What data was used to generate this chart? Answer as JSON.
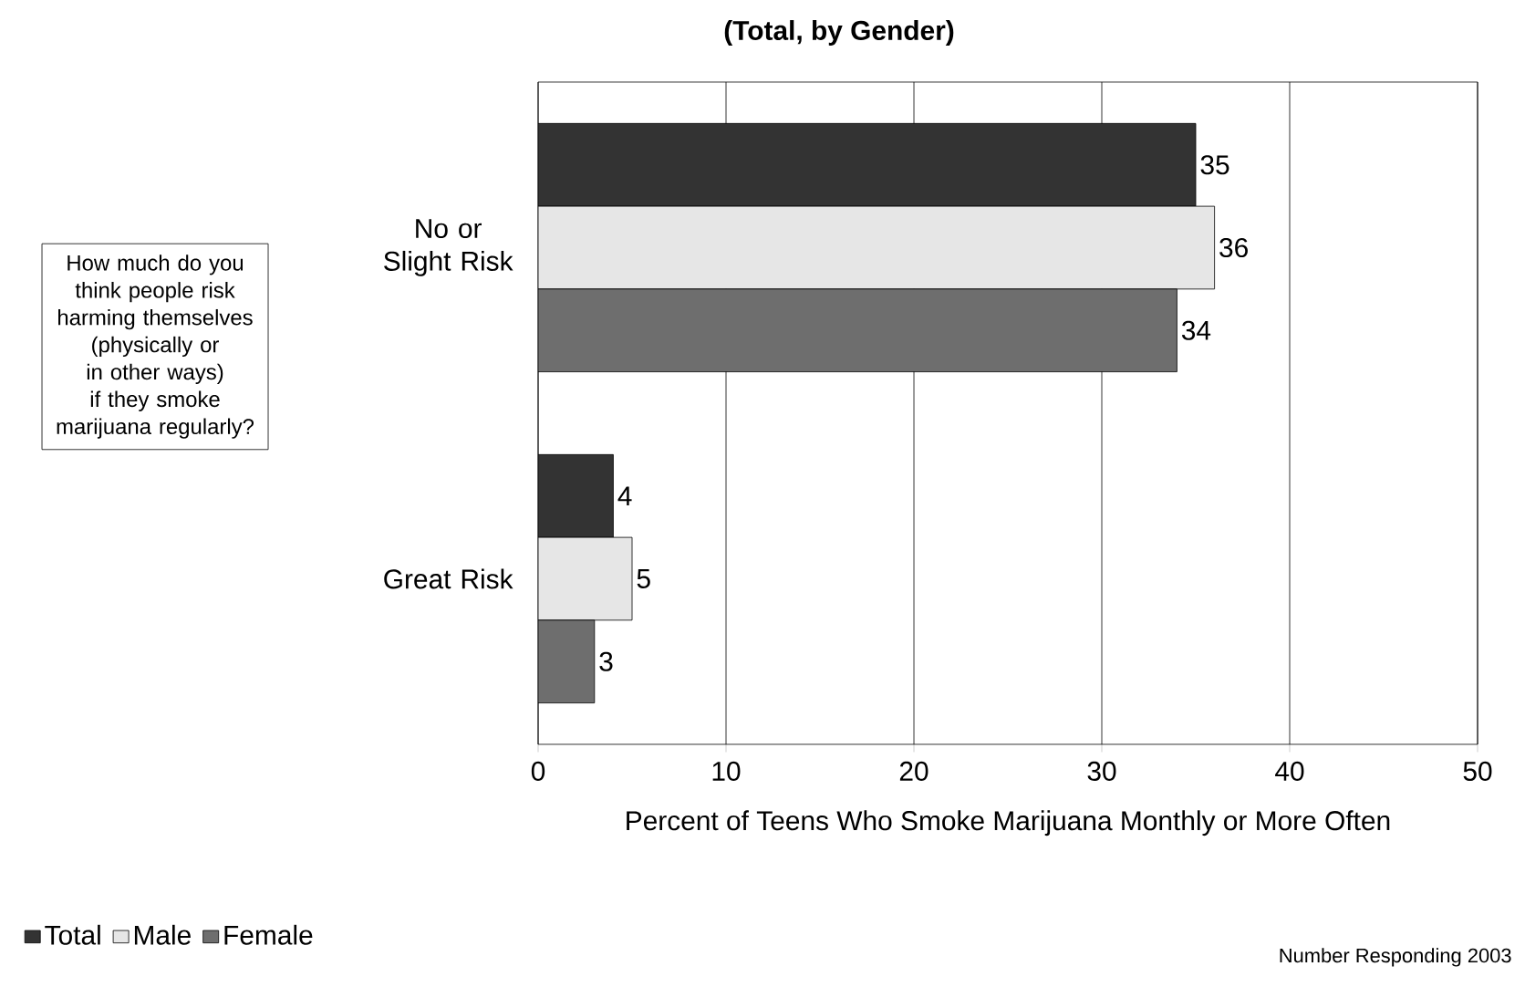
{
  "chart_data": {
    "type": "bar",
    "orientation": "horizontal",
    "title": "(Total, by Gender)",
    "xlabel": "Percent of Teens Who Smoke Marijuana Monthly or More Often",
    "categories": [
      "No or Slight Risk",
      "Great Risk"
    ],
    "series": [
      {
        "name": "Total",
        "color": "#333333",
        "values": [
          35,
          4
        ]
      },
      {
        "name": "Male",
        "color": "#e6e6e6",
        "values": [
          36,
          5
        ]
      },
      {
        "name": "Female",
        "color": "#6e6e6e",
        "values": [
          34,
          3
        ]
      }
    ],
    "xlim": [
      0,
      50
    ],
    "xticks": [
      0,
      10,
      20,
      30,
      40,
      50
    ],
    "grid": "x",
    "legend": "bottom left",
    "data_labels": true,
    "annotations": [
      "How much do you think people risk harming themselves (physically or in other ways)  if they smoke marijuana regularly?",
      "Number Responding 2003"
    ]
  }
}
